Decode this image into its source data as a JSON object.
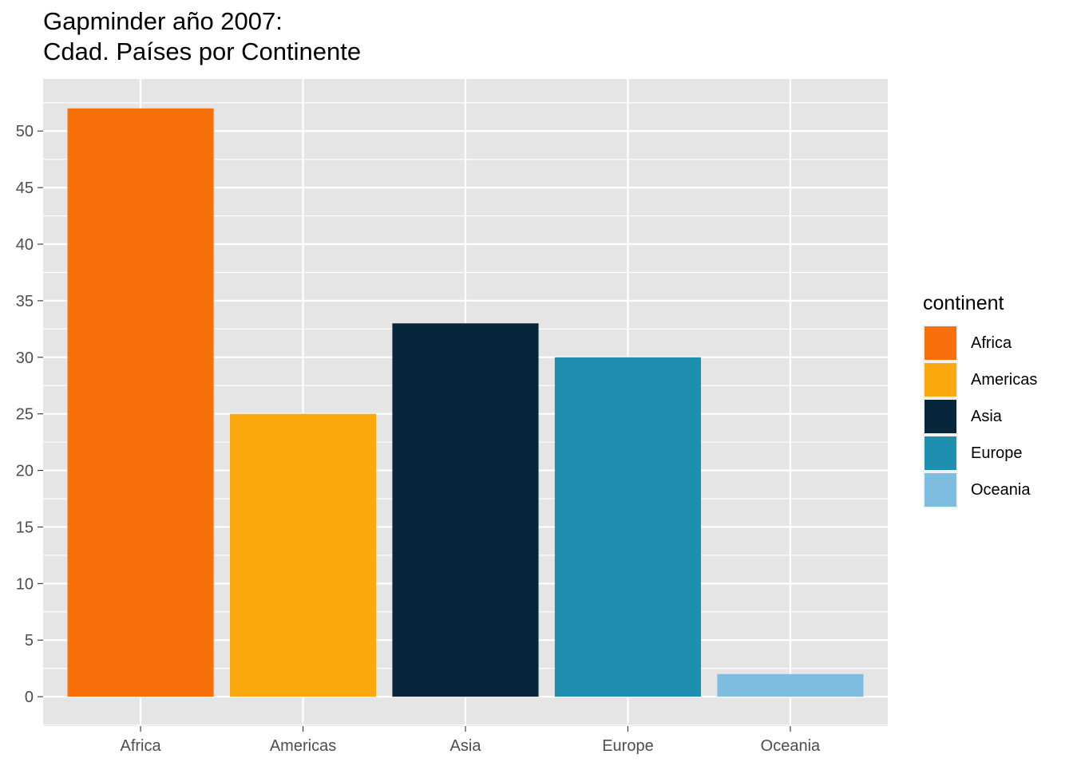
{
  "title": {
    "line1": "Gapminder año 2007:",
    "line2": "Cdad. Países por Continente"
  },
  "legend": {
    "title": "continent"
  },
  "colors": {
    "panel_background": "#e5e5e5",
    "grid_line": "#ffffff",
    "tick_text": "#4d4d4d",
    "tick_mark": "#333333"
  },
  "chart_data": {
    "type": "bar",
    "title": "Gapminder año 2007: Cdad. Países por Continente",
    "xlabel": "",
    "ylabel": "",
    "categories": [
      "Africa",
      "Americas",
      "Asia",
      "Europe",
      "Oceania"
    ],
    "values": [
      52,
      25,
      33,
      30,
      2
    ],
    "bar_colors": [
      "#F8700A",
      "#FCA80F",
      "#07263B",
      "#1F8FB0",
      "#7EBCE0"
    ],
    "yticks": [
      0,
      5,
      10,
      15,
      20,
      25,
      30,
      35,
      40,
      45,
      50
    ],
    "ylim": [
      -2.6,
      54.6
    ],
    "grid": true,
    "legend_position": "right"
  }
}
